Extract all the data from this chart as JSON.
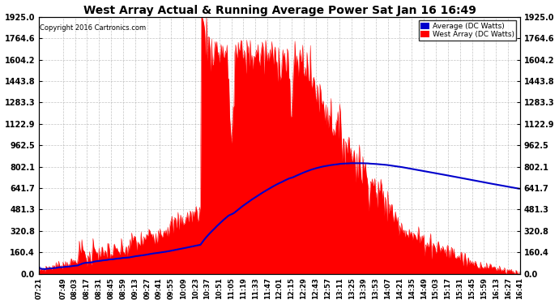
{
  "title": "West Array Actual & Running Average Power Sat Jan 16 16:49",
  "copyright": "Copyright 2016 Cartronics.com",
  "legend_avg": "Average (DC Watts)",
  "legend_west": "West Array (DC Watts)",
  "ylim": [
    0,
    1925.0
  ],
  "yticks": [
    0.0,
    160.4,
    320.8,
    481.3,
    641.7,
    802.1,
    962.5,
    1122.9,
    1283.3,
    1443.8,
    1604.2,
    1764.6,
    1925.0
  ],
  "bg_color": "#ffffff",
  "grid_color": "#aaaaaa",
  "fill_color": "#ff0000",
  "avg_line_color": "#0000cc",
  "title_color": "#000000",
  "xtick_labels": [
    "07:21",
    "07:49",
    "08:03",
    "08:17",
    "08:31",
    "08:45",
    "08:59",
    "09:13",
    "09:27",
    "09:41",
    "09:55",
    "10:09",
    "10:23",
    "10:37",
    "10:51",
    "11:05",
    "11:19",
    "11:33",
    "11:47",
    "12:01",
    "12:15",
    "12:29",
    "12:43",
    "12:57",
    "13:11",
    "13:25",
    "13:39",
    "13:53",
    "14:07",
    "14:21",
    "14:35",
    "14:49",
    "15:03",
    "15:17",
    "15:31",
    "15:45",
    "15:59",
    "16:13",
    "16:27",
    "16:41"
  ]
}
